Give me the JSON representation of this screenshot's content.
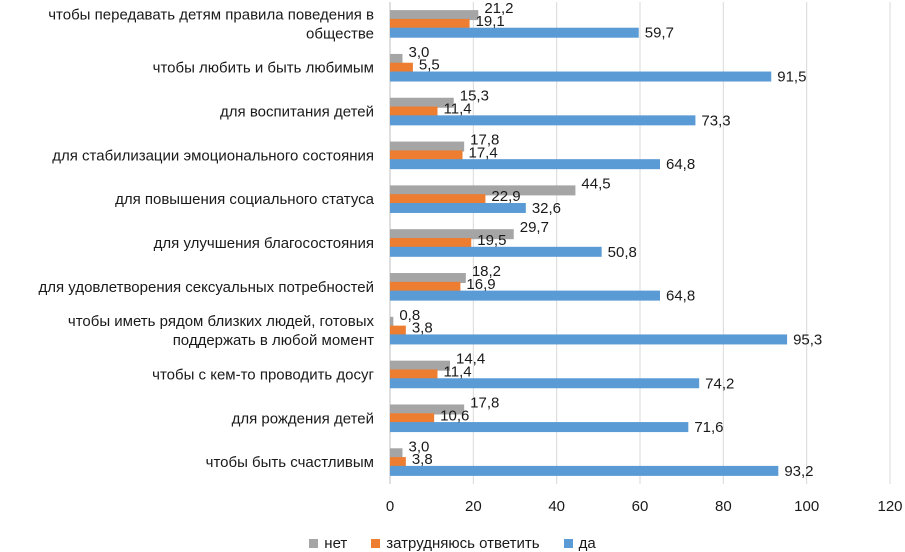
{
  "chart_data": {
    "type": "bar",
    "orientation": "horizontal",
    "categories": [
      "чтобы передавать детям правила поведения в обществе",
      "чтобы любить и быть любимым",
      "для воспитания детей",
      "для стабилизации эмоционального состояния",
      "для повышения социального статуса",
      "для улучшения благосостояния",
      "для удовлетворения сексуальных потребностей",
      "чтобы иметь рядом близких людей, готовых поддержать в любой момент",
      "чтобы с кем-то проводить досуг",
      "для рождения детей",
      "чтобы быть счастливым"
    ],
    "category_lines": [
      [
        "чтобы передавать детям правила поведения в",
        "обществе"
      ],
      [
        "чтобы любить и быть любимым"
      ],
      [
        "для воспитания детей"
      ],
      [
        "для стабилизации эмоционального состояния"
      ],
      [
        "для повышения социального статуса"
      ],
      [
        "для улучшения благосостояния"
      ],
      [
        "для удовлетворения сексуальных потребностей"
      ],
      [
        "чтобы иметь рядом близких людей, готовых",
        "поддержать в любой момент"
      ],
      [
        "чтобы с кем-то проводить досуг"
      ],
      [
        "для рождения детей"
      ],
      [
        "чтобы быть счастливым"
      ]
    ],
    "series": [
      {
        "name": "нет",
        "color": "#a5a5a5",
        "values": [
          21.2,
          3.0,
          15.3,
          17.8,
          44.5,
          29.7,
          18.2,
          0.8,
          14.4,
          17.8,
          3.0
        ],
        "labels": [
          "21,2",
          "3,0",
          "15,3",
          "17,8",
          "44,5",
          "29,7",
          "18,2",
          "0,8",
          "14,4",
          "17,8",
          "3,0"
        ]
      },
      {
        "name": "затрудняюсь ответить",
        "color": "#ed7d31",
        "values": [
          19.1,
          5.5,
          11.4,
          17.4,
          22.9,
          19.5,
          16.9,
          3.8,
          11.4,
          10.6,
          3.8
        ],
        "labels": [
          "19,1",
          "5,5",
          "11,4",
          "17,4",
          "22,9",
          "19,5",
          "16,9",
          "3,8",
          "11,4",
          "10,6",
          "3,8"
        ]
      },
      {
        "name": "да",
        "color": "#5b9bd5",
        "values": [
          59.7,
          91.5,
          73.3,
          64.8,
          32.6,
          50.8,
          64.8,
          95.3,
          74.2,
          71.6,
          93.2
        ],
        "labels": [
          "59,7",
          "91,5",
          "73,3",
          "64,8",
          "32,6",
          "50,8",
          "64,8",
          "95,3",
          "74,2",
          "71,6",
          "93,2"
        ]
      }
    ],
    "xlim": [
      0,
      120
    ],
    "xticks": [
      0,
      20,
      40,
      60,
      80,
      100,
      120
    ],
    "grid": true,
    "legend_position": "bottom"
  }
}
